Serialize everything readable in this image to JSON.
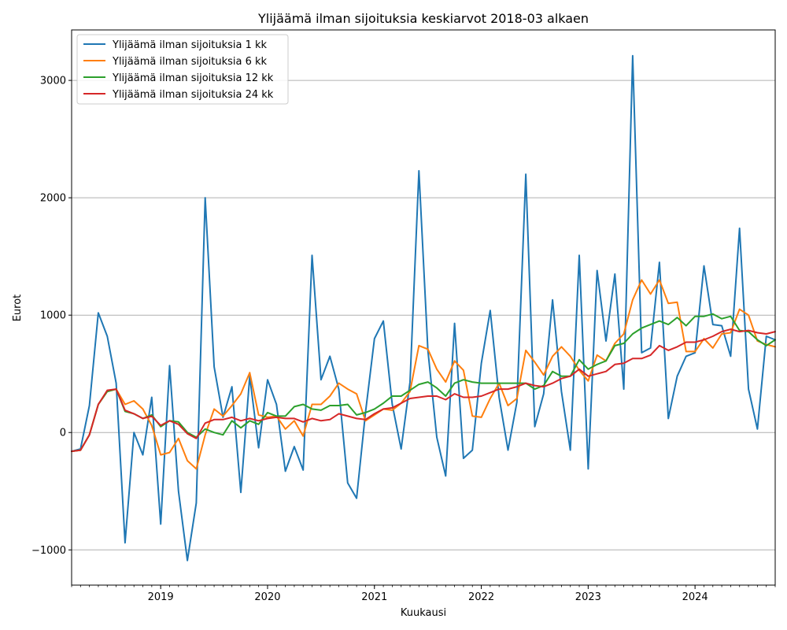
{
  "chart_data": {
    "type": "line",
    "title": "Ylijäämä ilman sijoituksia keskiarvot 2018-03 alkaen",
    "xlabel": "Kuukausi",
    "ylabel": "Eurot",
    "xlim": [
      "2018-03",
      "2024-10"
    ],
    "ylim": [
      -1300,
      3430
    ],
    "yticks": [
      -1000,
      0,
      1000,
      2000,
      3000
    ],
    "ytick_labels": [
      "−1000",
      "0",
      "1000",
      "2000",
      "3000"
    ],
    "xticks": [
      "2019-01",
      "2020-01",
      "2021-01",
      "2022-01",
      "2023-01",
      "2024-01"
    ],
    "xtick_labels": [
      "2019",
      "2020",
      "2021",
      "2022",
      "2023",
      "2024"
    ],
    "grid": "y",
    "legend_position": "top-left",
    "x": [
      "2018-03",
      "2018-04",
      "2018-05",
      "2018-06",
      "2018-07",
      "2018-08",
      "2018-09",
      "2018-10",
      "2018-11",
      "2018-12",
      "2019-01",
      "2019-02",
      "2019-03",
      "2019-04",
      "2019-05",
      "2019-06",
      "2019-07",
      "2019-08",
      "2019-09",
      "2019-10",
      "2019-11",
      "2019-12",
      "2020-01",
      "2020-02",
      "2020-03",
      "2020-04",
      "2020-05",
      "2020-06",
      "2020-07",
      "2020-08",
      "2020-09",
      "2020-10",
      "2020-11",
      "2020-12",
      "2021-01",
      "2021-02",
      "2021-03",
      "2021-04",
      "2021-05",
      "2021-06",
      "2021-07",
      "2021-08",
      "2021-09",
      "2021-10",
      "2021-11",
      "2021-12",
      "2022-01",
      "2022-02",
      "2022-03",
      "2022-04",
      "2022-05",
      "2022-06",
      "2022-07",
      "2022-08",
      "2022-09",
      "2022-10",
      "2022-11",
      "2022-12",
      "2023-01",
      "2023-02",
      "2023-03",
      "2023-04",
      "2023-05",
      "2023-06",
      "2023-07",
      "2023-08",
      "2023-09",
      "2023-10",
      "2023-11",
      "2023-12",
      "2024-01",
      "2024-02",
      "2024-03",
      "2024-04",
      "2024-05",
      "2024-06",
      "2024-07",
      "2024-08",
      "2024-09",
      "2024-10"
    ],
    "series": [
      {
        "name": "Ylijäämä ilman sijoituksia 1 kk",
        "color": "#1f77b4",
        "values": [
          -160,
          -140,
          230,
          1020,
          820,
          420,
          -940,
          0,
          -190,
          300,
          -780,
          570,
          -500,
          -1090,
          -600,
          2000,
          560,
          130,
          390,
          -510,
          480,
          -130,
          450,
          240,
          -330,
          -120,
          -320,
          1510,
          450,
          650,
          370,
          -430,
          -560,
          170,
          800,
          950,
          240,
          -140,
          430,
          2230,
          700,
          -40,
          -370,
          930,
          -220,
          -150,
          590,
          1040,
          300,
          -150,
          260,
          2200,
          50,
          330,
          1130,
          350,
          -150,
          1510,
          -310,
          1380,
          780,
          1350,
          370,
          3210,
          680,
          720,
          1450,
          120,
          480,
          650,
          680,
          1420,
          920,
          910,
          650,
          1740,
          370,
          30,
          820,
          790
        ]
      },
      {
        "name": "Ylijäämä ilman sijoituksia 6 kk",
        "color": "#ff7f0e",
        "values": [
          -160,
          -150,
          -20,
          240,
          350,
          370,
          240,
          270,
          200,
          60,
          -190,
          -170,
          -50,
          -240,
          -310,
          -20,
          200,
          140,
          230,
          330,
          510,
          150,
          130,
          140,
          30,
          100,
          -30,
          240,
          240,
          310,
          420,
          370,
          330,
          100,
          150,
          200,
          190,
          250,
          350,
          740,
          710,
          540,
          430,
          610,
          530,
          140,
          130,
          290,
          420,
          230,
          290,
          700,
          600,
          490,
          650,
          730,
          650,
          530,
          440,
          660,
          610,
          760,
          840,
          1130,
          1300,
          1180,
          1300,
          1100,
          1110,
          690,
          690,
          800,
          720,
          840,
          850,
          1050,
          1000,
          780,
          750,
          730
        ]
      },
      {
        "name": "Ylijäämä ilman sijoituksia 12 kk",
        "color": "#2ca02c",
        "values": [
          -160,
          -150,
          -20,
          240,
          350,
          370,
          180,
          160,
          120,
          150,
          50,
          100,
          90,
          0,
          -40,
          30,
          0,
          -20,
          100,
          40,
          100,
          70,
          170,
          140,
          140,
          220,
          240,
          200,
          190,
          230,
          230,
          240,
          150,
          170,
          200,
          250,
          310,
          310,
          360,
          410,
          430,
          380,
          310,
          420,
          450,
          430,
          420,
          420,
          420,
          420,
          420,
          420,
          370,
          400,
          520,
          480,
          480,
          620,
          540,
          580,
          610,
          740,
          760,
          840,
          890,
          920,
          950,
          920,
          980,
          910,
          990,
          990,
          1010,
          970,
          990,
          870,
          860,
          790,
          740,
          790
        ]
      },
      {
        "name": "Ylijäämä ilman sijoituksia 24 kk",
        "color": "#d62728",
        "values": [
          -160,
          -150,
          -20,
          240,
          360,
          370,
          190,
          160,
          120,
          140,
          60,
          100,
          70,
          -10,
          -50,
          80,
          110,
          110,
          130,
          100,
          120,
          100,
          120,
          130,
          120,
          120,
          90,
          120,
          100,
          110,
          160,
          140,
          120,
          110,
          160,
          200,
          210,
          250,
          290,
          300,
          310,
          310,
          280,
          330,
          300,
          300,
          310,
          340,
          370,
          370,
          390,
          420,
          400,
          390,
          420,
          460,
          480,
          540,
          480,
          500,
          520,
          580,
          590,
          630,
          630,
          660,
          740,
          700,
          730,
          770,
          770,
          790,
          820,
          860,
          880,
          860,
          870,
          850,
          840,
          860
        ]
      }
    ]
  }
}
